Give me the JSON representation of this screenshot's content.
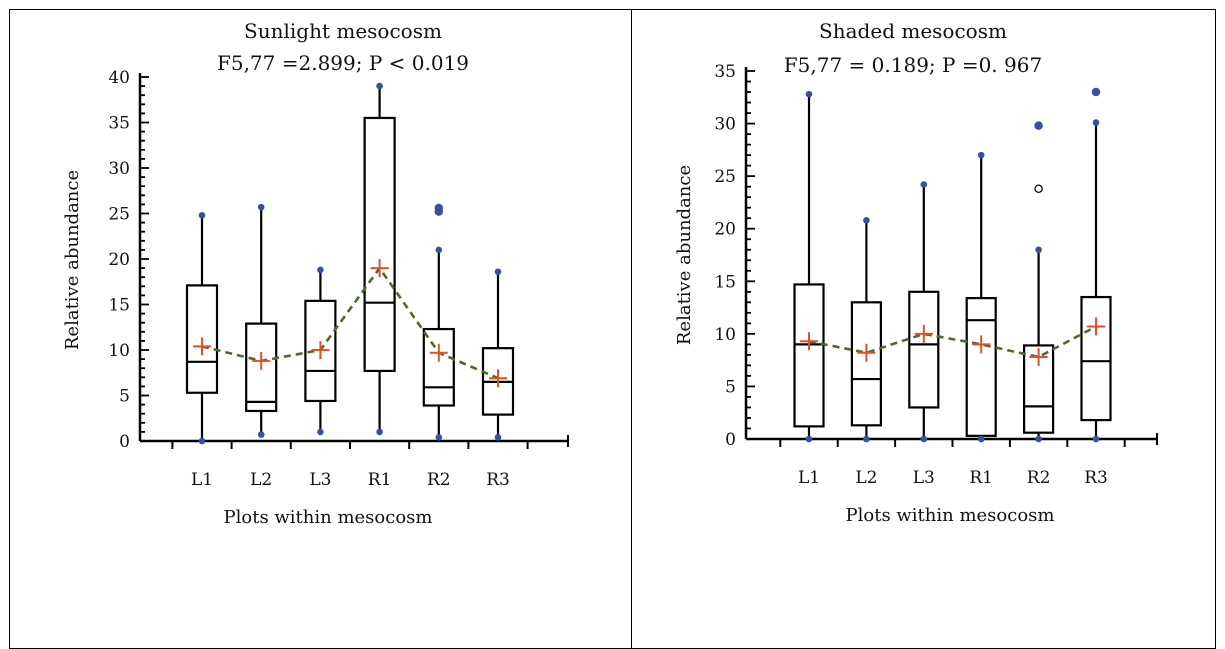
{
  "chart_data": [
    {
      "type": "box",
      "title": "Sunlight mesocosm",
      "subtitle": "F5,77 =2.899; P < 0.019",
      "xlabel": "Plots within mesocosm",
      "ylabel": "Relative abundance",
      "ylim": [
        0,
        40
      ],
      "yticks": [
        0,
        5,
        10,
        15,
        20,
        25,
        30,
        35,
        40
      ],
      "categories": [
        "L1",
        "L2",
        "L3",
        "R1",
        "R2",
        "R3"
      ],
      "series": [
        {
          "name": "",
          "values": [
            {
              "min": 0,
              "q1": 5.3,
              "median": 8.7,
              "q3": 17.1,
              "max": 24.8,
              "mean": 10.4,
              "outliers": []
            },
            {
              "min": 0.7,
              "q1": 3.3,
              "median": 4.3,
              "q3": 12.9,
              "max": 25.7,
              "mean": 8.8,
              "outliers": []
            },
            {
              "min": 1.0,
              "q1": 4.4,
              "median": 7.7,
              "q3": 15.4,
              "max": 18.8,
              "mean": 10.0,
              "outliers": []
            },
            {
              "min": 1.0,
              "q1": 7.7,
              "median": 15.2,
              "q3": 35.5,
              "max": 39.0,
              "mean": 19.0,
              "outliers": []
            },
            {
              "min": 0.4,
              "q1": 3.9,
              "median": 5.9,
              "q3": 12.3,
              "max": 21.0,
              "mean": 9.7,
              "outliers": [
                25.2,
                25.6
              ]
            },
            {
              "min": 0.4,
              "q1": 2.9,
              "median": 6.5,
              "q3": 10.2,
              "max": 18.6,
              "mean": 6.9,
              "outliers": []
            }
          ]
        }
      ]
    },
    {
      "type": "box",
      "title": "Shaded mesocosm",
      "subtitle": "F5,77 = 0.189; P =0. 967",
      "xlabel": "Plots within mesocosm",
      "ylabel": "Relative abundance",
      "ylim": [
        0,
        35
      ],
      "yticks": [
        0,
        5,
        10,
        15,
        20,
        25,
        30,
        35
      ],
      "categories": [
        "L1",
        "L2",
        "L3",
        "R1",
        "R2",
        "R3"
      ],
      "series": [
        {
          "name": "",
          "values": [
            {
              "min": 0,
              "q1": 1.2,
              "median": 9.0,
              "q3": 14.7,
              "max": 32.8,
              "mean": 9.3,
              "outliers": []
            },
            {
              "min": 0,
              "q1": 1.3,
              "median": 5.7,
              "q3": 13.0,
              "max": 20.8,
              "mean": 8.2,
              "outliers": []
            },
            {
              "min": 0,
              "q1": 3.0,
              "median": 9.0,
              "q3": 14.0,
              "max": 24.2,
              "mean": 10.0,
              "outliers": []
            },
            {
              "min": 0,
              "q1": 0.3,
              "median": 11.3,
              "q3": 13.4,
              "max": 27.0,
              "mean": 9.0,
              "outliers": []
            },
            {
              "min": 0,
              "q1": 0.6,
              "median": 3.1,
              "q3": 8.9,
              "max": 18.0,
              "mean": 7.8,
              "outliers": [
                23.8,
                29.8
              ]
            },
            {
              "min": 0,
              "q1": 1.8,
              "median": 7.4,
              "q3": 13.5,
              "max": 30.1,
              "mean": 10.7,
              "outliers": [
                33.0
              ]
            }
          ]
        }
      ]
    }
  ],
  "colors": {
    "box_stroke": "#000000",
    "extreme_point": "#3b4fa0",
    "mean_marker": "#e0502a",
    "mean_line": "#4f6b2c"
  }
}
